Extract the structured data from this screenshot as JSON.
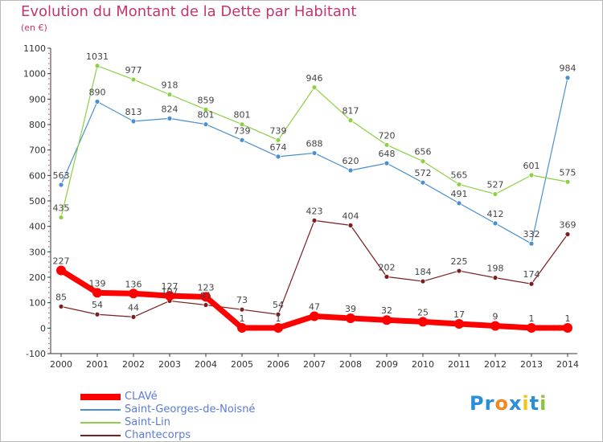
{
  "header": {
    "title": "Evolution du Montant de la Dette par Habitant",
    "unit": "(en €)"
  },
  "colors": {
    "title": "#c4366e",
    "legend_text": "#5b7bd5",
    "axis": "#333333"
  },
  "chart_data": {
    "type": "line",
    "title": "Evolution du Montant de la Dette par Habitant",
    "subtitle": "(en €)",
    "x": [
      2000,
      2001,
      2002,
      2003,
      2004,
      2005,
      2006,
      2007,
      2008,
      2009,
      2010,
      2011,
      2012,
      2013,
      2014
    ],
    "ylim": [
      -100,
      1100
    ],
    "yticks": [
      -100,
      0,
      100,
      200,
      300,
      400,
      500,
      600,
      700,
      800,
      900,
      1000,
      1100
    ],
    "grid": false,
    "legend_position": "bottom-left",
    "series": [
      {
        "name": "CLAVé",
        "color": "#ff0000",
        "values": [
          227,
          139,
          136,
          127,
          123,
          1,
          1,
          47,
          39,
          32,
          25,
          17,
          9,
          1,
          1
        ]
      },
      {
        "name": "Saint-Georges-de-Noisné",
        "color": "#4a8fd0",
        "values": [
          563,
          890,
          813,
          824,
          801,
          739,
          674,
          688,
          620,
          648,
          572,
          491,
          412,
          332,
          984
        ]
      },
      {
        "name": "Saint-Lin",
        "color": "#8cd043",
        "values": [
          435,
          1031,
          977,
          918,
          859,
          801,
          739,
          946,
          817,
          720,
          656,
          565,
          527,
          601,
          575
        ]
      },
      {
        "name": "Chantecorps",
        "color": "#7a1e1e",
        "values": [
          85,
          54,
          44,
          107,
          91,
          73,
          54,
          423,
          404,
          202,
          184,
          225,
          198,
          174,
          369
        ]
      }
    ]
  },
  "logo": {
    "letters": [
      "P",
      "r",
      "o",
      "x",
      "i",
      "t",
      "i"
    ],
    "colors": [
      "#2a8fd8",
      "#2a8fd8",
      "#f08a1e",
      "#2a8fd8",
      "#f0c419",
      "#2a8fd8",
      "#8cc43c"
    ]
  }
}
